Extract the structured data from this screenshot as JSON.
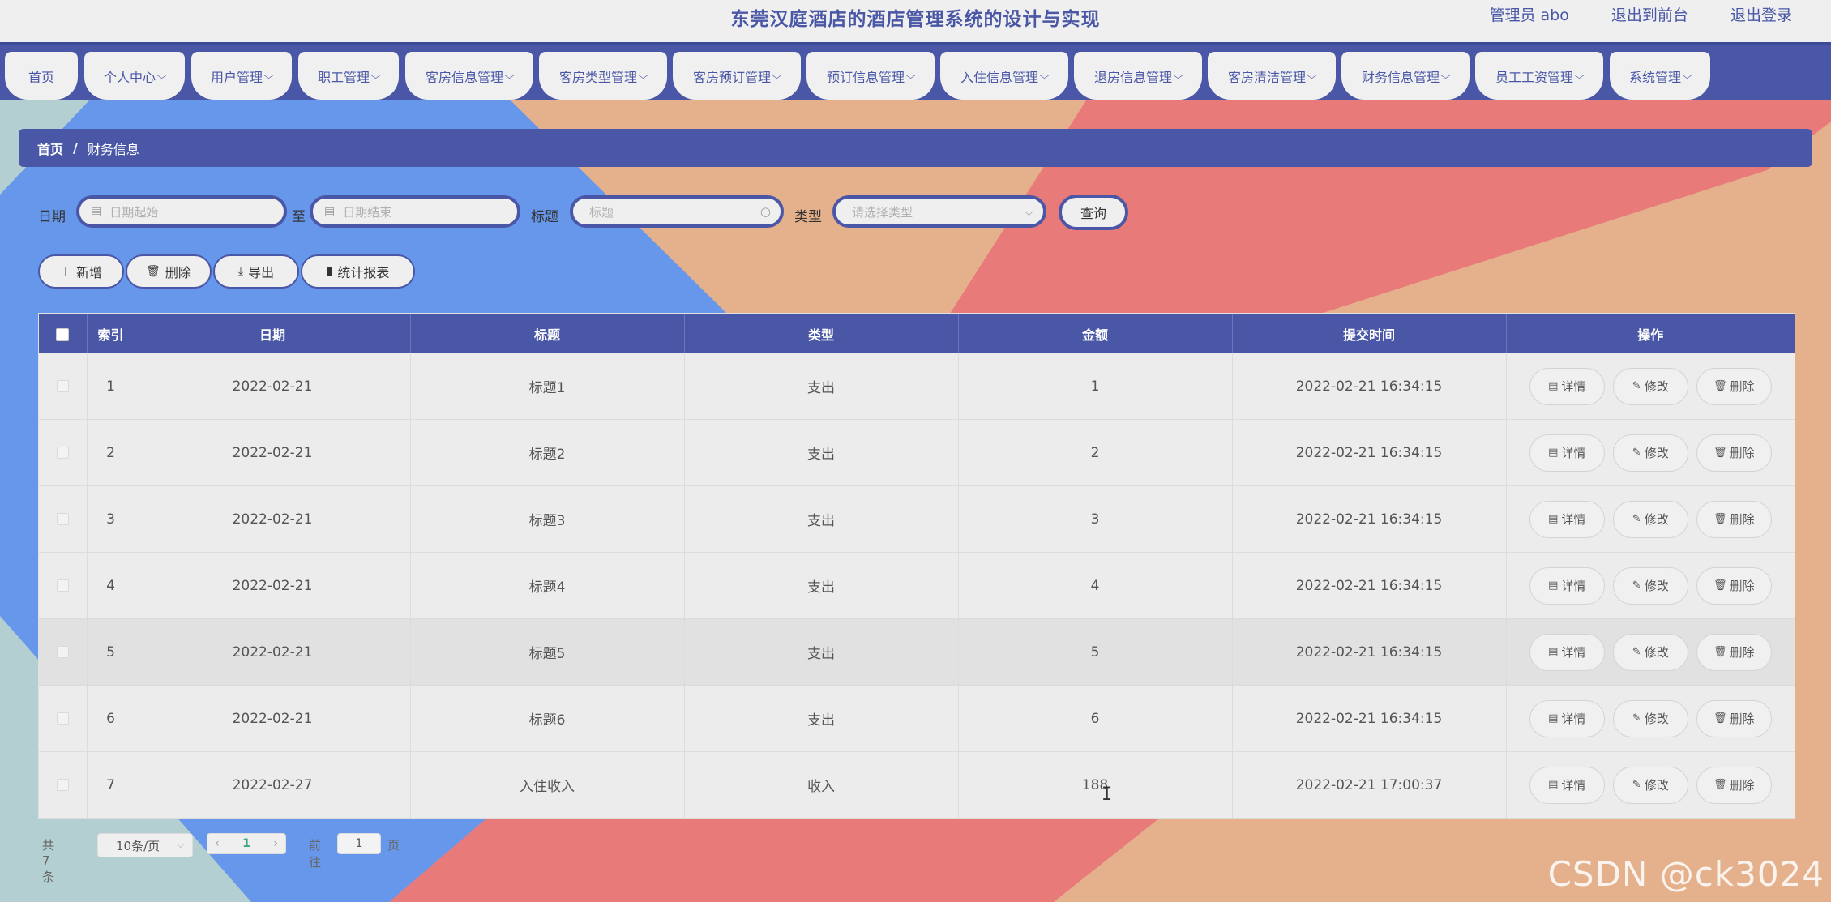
{
  "header": {
    "title": "东莞汉庭酒店的酒店管理系统的设计与实现",
    "user_label": "管理员 abo",
    "front_link": "退出到前台",
    "logout_link": "退出登录"
  },
  "nav": {
    "items": [
      {
        "label": "首页"
      },
      {
        "label": "个人中心"
      },
      {
        "label": "用户管理"
      },
      {
        "label": "职工管理"
      },
      {
        "label": "客房信息管理"
      },
      {
        "label": "客房类型管理"
      },
      {
        "label": "客房预订管理"
      },
      {
        "label": "预订信息管理"
      },
      {
        "label": "入住信息管理"
      },
      {
        "label": "退房信息管理"
      },
      {
        "label": "客房清洁管理"
      },
      {
        "label": "财务信息管理"
      },
      {
        "label": "员工工资管理"
      },
      {
        "label": "系统管理"
      }
    ],
    "chevron": "⌵"
  },
  "breadcrumb": {
    "home": "首页",
    "separator": "/",
    "current": "财务信息"
  },
  "filters": {
    "date_label": "日期",
    "date_start_placeholder": "日期起始",
    "to_label": "至",
    "date_end_placeholder": "日期结束",
    "title_label": "标题",
    "title_placeholder": "标题",
    "type_label": "类型",
    "type_placeholder": "请选择类型",
    "query_button": "查询"
  },
  "actions": {
    "add": "新增",
    "delete": "删除",
    "export": "导出",
    "report": "统计报表"
  },
  "table": {
    "columns": {
      "index": "索引",
      "date": "日期",
      "title": "标题",
      "type": "类型",
      "amount": "金额",
      "submit_time": "提交时间",
      "operation": "操作"
    },
    "row_actions": {
      "detail": "详情",
      "edit": "修改",
      "delete": "删除"
    },
    "rows": [
      {
        "index": "1",
        "date": "2022-02-21",
        "title": "标题1",
        "type": "支出",
        "amount": "1",
        "submit_time": "2022-02-21 16:34:15"
      },
      {
        "index": "2",
        "date": "2022-02-21",
        "title": "标题2",
        "type": "支出",
        "amount": "2",
        "submit_time": "2022-02-21 16:34:15"
      },
      {
        "index": "3",
        "date": "2022-02-21",
        "title": "标题3",
        "type": "支出",
        "amount": "3",
        "submit_time": "2022-02-21 16:34:15"
      },
      {
        "index": "4",
        "date": "2022-02-21",
        "title": "标题4",
        "type": "支出",
        "amount": "4",
        "submit_time": "2022-02-21 16:34:15"
      },
      {
        "index": "5",
        "date": "2022-02-21",
        "title": "标题5",
        "type": "支出",
        "amount": "5",
        "submit_time": "2022-02-21 16:34:15"
      },
      {
        "index": "6",
        "date": "2022-02-21",
        "title": "标题6",
        "type": "支出",
        "amount": "6",
        "submit_time": "2022-02-21 16:34:15"
      },
      {
        "index": "7",
        "date": "2022-02-27",
        "title": "入住收入",
        "type": "收入",
        "amount": "188",
        "submit_time": "2022-02-21 17:00:37"
      }
    ]
  },
  "pagination": {
    "total": "共 7 条",
    "page_size": "10条/页",
    "current_page": "1",
    "goto_label": "前往",
    "goto_value": "1",
    "page_unit": "页"
  },
  "watermark": "CSDN @ck3024",
  "colors": {
    "primary": "#4a57a6",
    "bg_blue": "#6797ea",
    "bg_peach": "#e5b08c",
    "bg_red": "#e97a7a",
    "bg_teal": "#b3cfd1",
    "link_green": "#3aa87a"
  }
}
